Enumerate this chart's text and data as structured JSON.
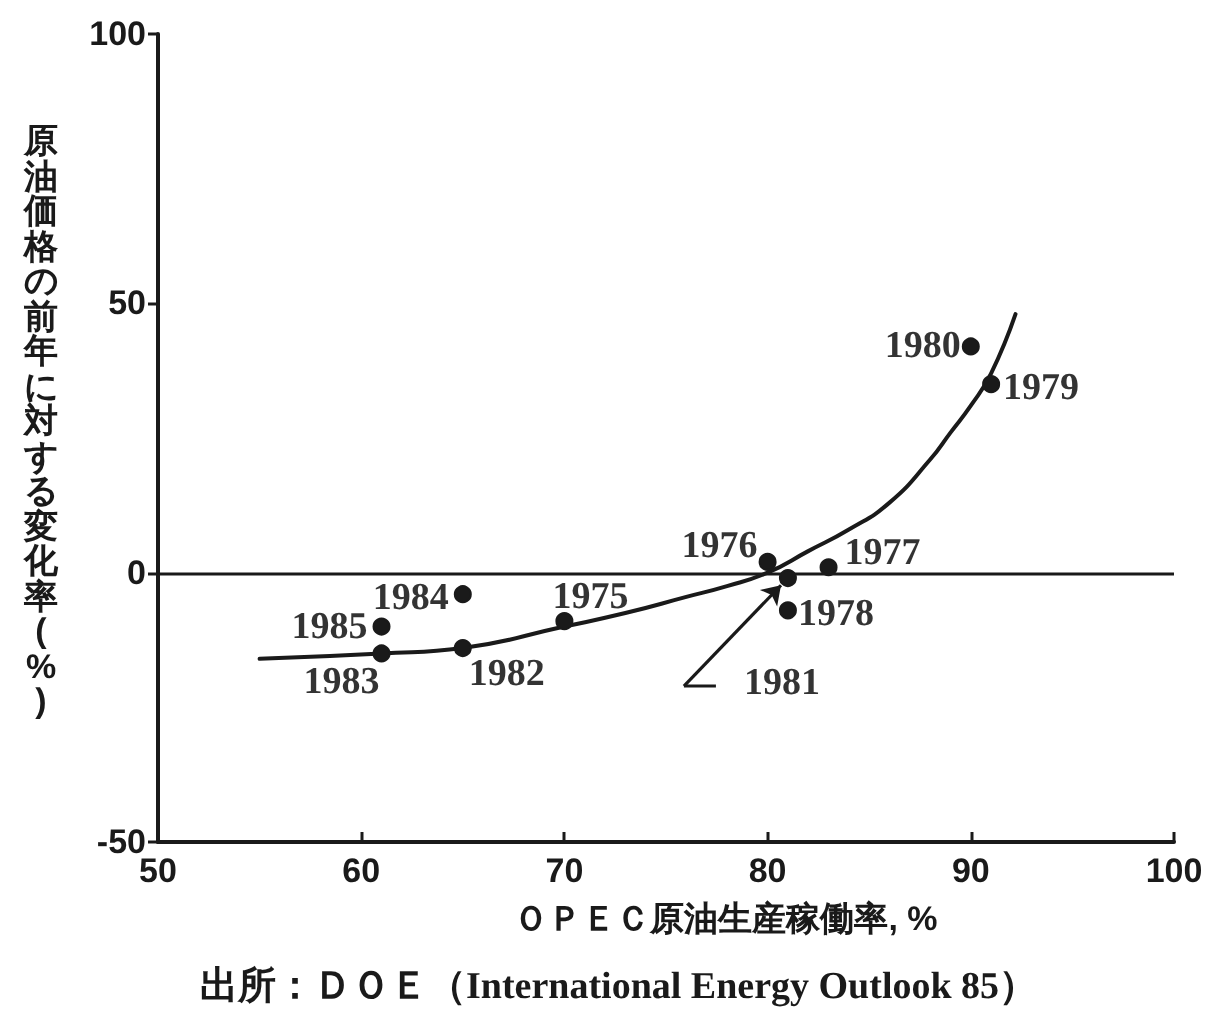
{
  "chart_data": {
    "type": "scatter",
    "xlabel": "ＯＰＥＣ原油生産稼働率, %",
    "ylabel": "原油価格の前年に対する変化率(%)",
    "annotations": [
      {
        "text": "1975",
        "x": 70,
        "y": -9
      },
      {
        "text": "1976",
        "x": 80,
        "y": 2
      },
      {
        "text": "1977",
        "x": 83,
        "y": 1
      },
      {
        "text": "1978",
        "x": 81,
        "y": -7
      },
      {
        "text": "1979",
        "x": 91,
        "y": 35
      },
      {
        "text": "1980",
        "x": 90,
        "y": 42
      },
      {
        "text": "1981",
        "x": 81,
        "y": -1
      },
      {
        "text": "1982",
        "x": 65,
        "y": -14
      },
      {
        "text": "1983",
        "x": 61,
        "y": -15
      },
      {
        "text": "1984",
        "x": 65,
        "y": -4
      },
      {
        "text": "1985",
        "x": 61,
        "y": -10
      },
      "出所：ＤＯＥ（International Energy Outlook 85）"
    ],
    "xlim": [
      50,
      100
    ],
    "xticks": [
      50,
      60,
      70,
      80,
      90,
      100
    ],
    "ylim": [
      -50,
      100
    ],
    "yticks": [
      -50,
      0,
      50,
      100
    ],
    "marker": "circle",
    "ref_lines": [
      {
        "axis": "y",
        "value": 0,
        "color": "#1a1a1a"
      }
    ],
    "series": [
      {
        "type": "scatter",
        "color": "#1a1a1a",
        "x": [
          70,
          80,
          83,
          81,
          91,
          90,
          81,
          65,
          61,
          65,
          61
        ],
        "values": [
          -9,
          2,
          1,
          -7,
          35,
          42,
          -1,
          -14,
          -15,
          -4,
          -10
        ]
      },
      {
        "type": "line",
        "color": "#1a1a1a",
        "marker": "none",
        "line_style": "solid",
        "x": [
          55,
          61,
          65,
          70,
          73,
          76,
          78,
          80,
          82,
          84,
          86,
          88,
          89,
          90,
          91,
          92.2
        ],
        "values": [
          -16,
          -15,
          -14,
          -10,
          -7.5,
          -4.5,
          -2.5,
          0,
          4,
          8,
          13,
          21,
          26,
          31,
          37,
          48
        ]
      }
    ]
  }
}
